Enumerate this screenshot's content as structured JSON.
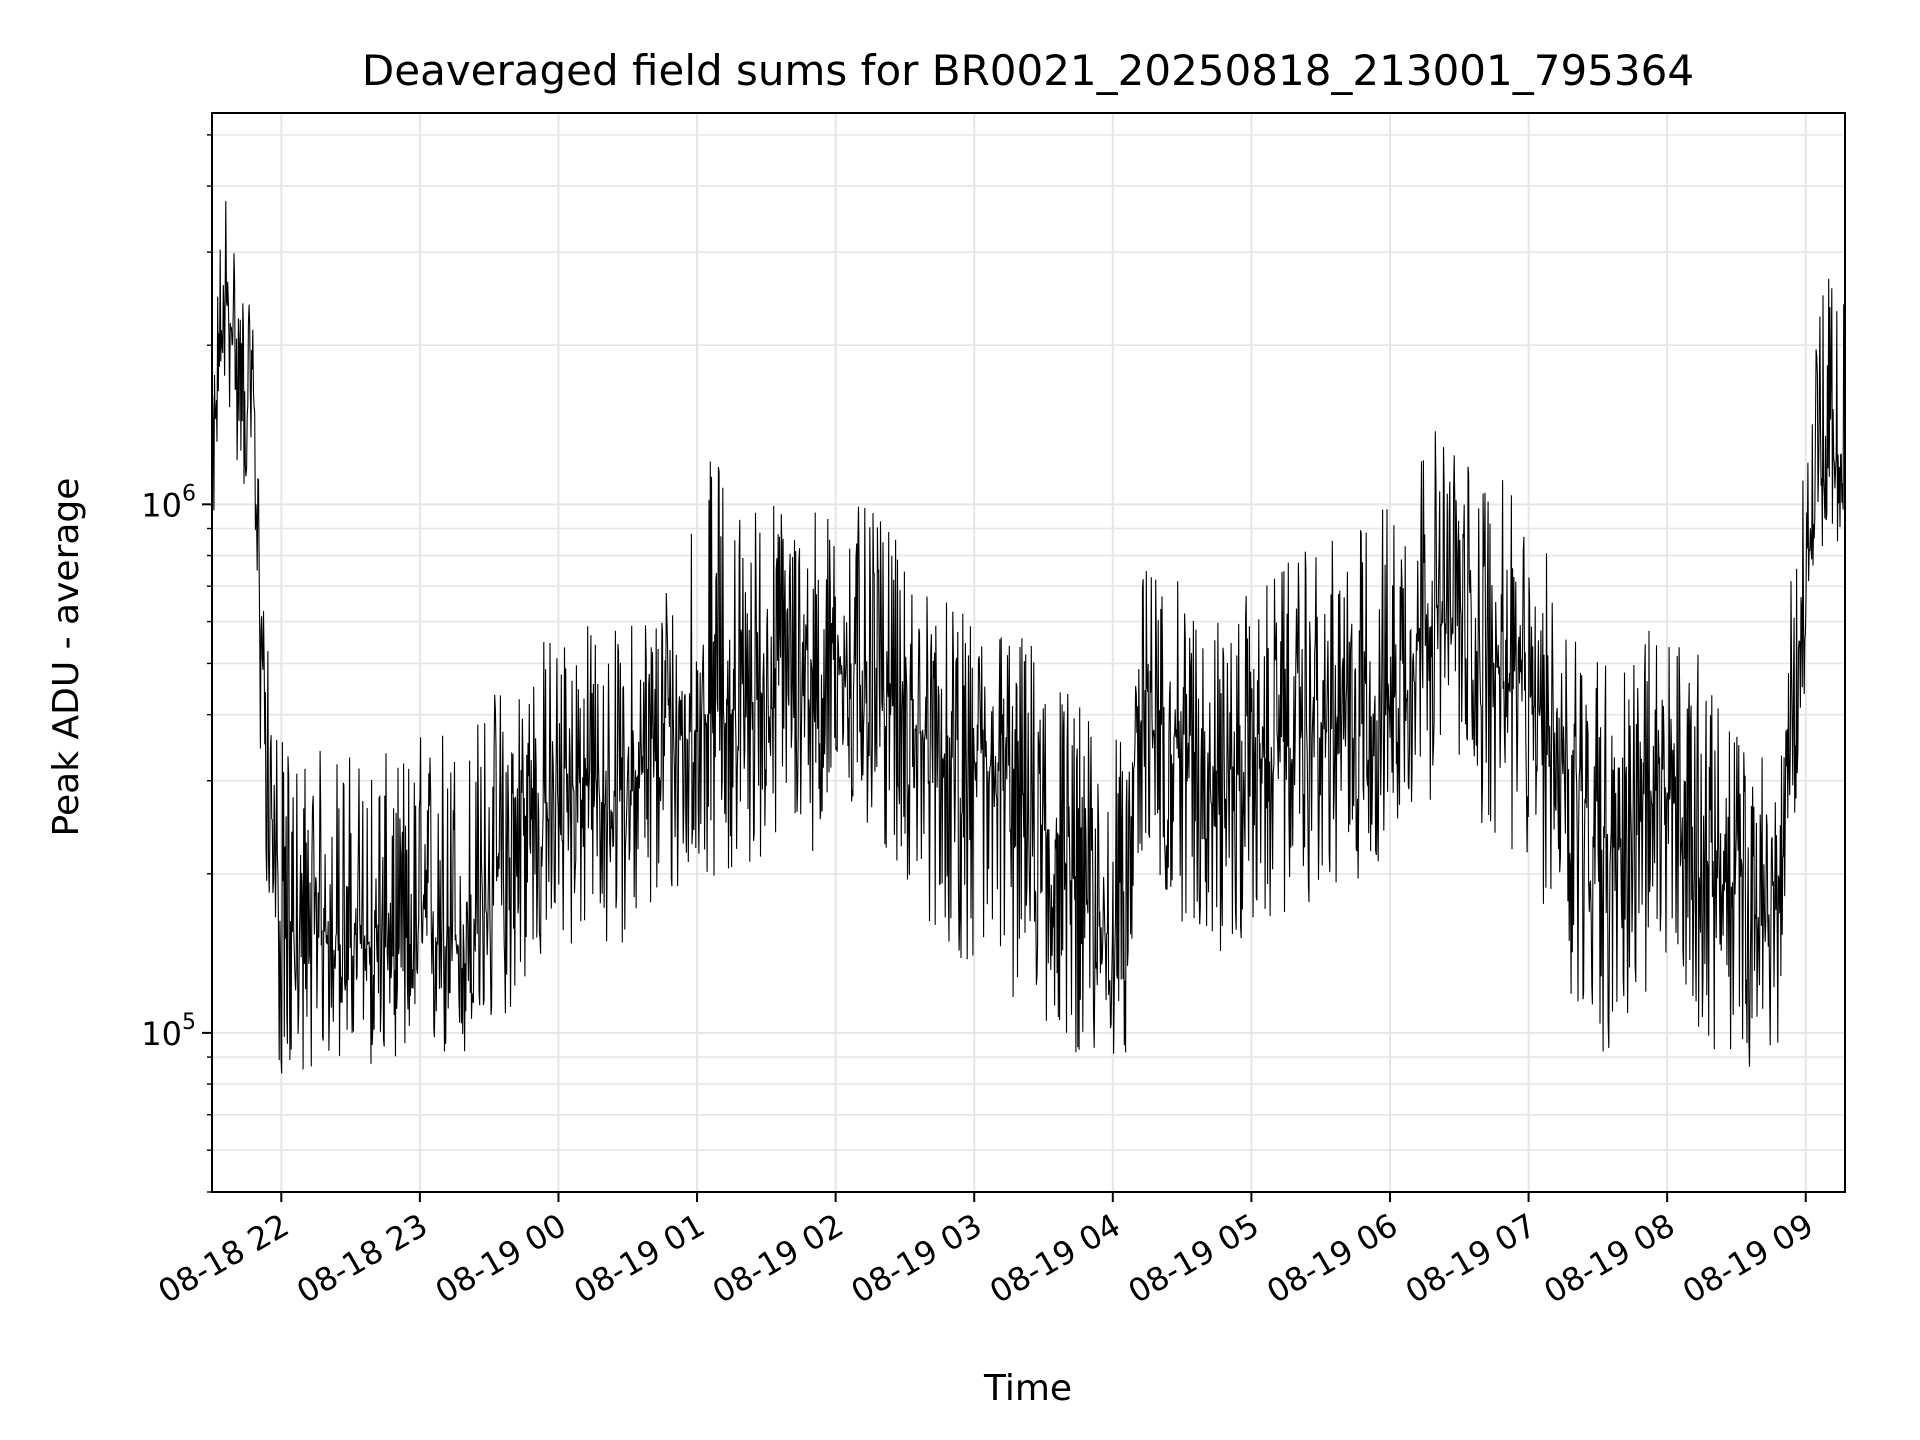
{
  "chart_data": {
    "type": "line",
    "title": "Deaveraged field sums for BR0021_20250818_213001_795364",
    "xlabel": "Time",
    "ylabel": "Peak ADU - average",
    "yscale": "log",
    "ylim": [
      50000,
      5500000
    ],
    "xlim": [
      "2025-08-18 21:30",
      "2025-08-19 09:17"
    ],
    "grid": true,
    "line_color": "#000000",
    "x_ticks": [
      {
        "time": "2025-08-18 22:00",
        "label": "08-18 22"
      },
      {
        "time": "2025-08-18 23:00",
        "label": "08-18 23"
      },
      {
        "time": "2025-08-19 00:00",
        "label": "08-19 00"
      },
      {
        "time": "2025-08-19 01:00",
        "label": "08-19 01"
      },
      {
        "time": "2025-08-19 02:00",
        "label": "08-19 02"
      },
      {
        "time": "2025-08-19 03:00",
        "label": "08-19 03"
      },
      {
        "time": "2025-08-19 04:00",
        "label": "08-19 04"
      },
      {
        "time": "2025-08-19 05:00",
        "label": "08-19 05"
      },
      {
        "time": "2025-08-19 06:00",
        "label": "08-19 06"
      },
      {
        "time": "2025-08-19 07:00",
        "label": "08-19 07"
      },
      {
        "time": "2025-08-19 08:00",
        "label": "08-19 08"
      },
      {
        "time": "2025-08-19 09:00",
        "label": "08-19 09"
      }
    ],
    "y_ticks": [
      {
        "value": 100000,
        "base": "10",
        "exp": "5"
      },
      {
        "value": 1000000,
        "base": "10",
        "exp": "6"
      }
    ],
    "series": [
      {
        "x": [
          "2025-08-18 21:30",
          "2025-08-18 21:33",
          "2025-08-18 21:36",
          "2025-08-18 21:39",
          "2025-08-18 21:42",
          "2025-08-18 21:45",
          "2025-08-18 21:48",
          "2025-08-18 21:51",
          "2025-08-18 21:54",
          "2025-08-18 21:57",
          "2025-08-18 22:00",
          "2025-08-18 22:10",
          "2025-08-18 22:20",
          "2025-08-18 22:30",
          "2025-08-18 22:40",
          "2025-08-18 22:50",
          "2025-08-18 23:00",
          "2025-08-18 23:10",
          "2025-08-18 23:20",
          "2025-08-18 23:30",
          "2025-08-18 23:40",
          "2025-08-18 23:50",
          "2025-08-19 00:00",
          "2025-08-19 00:10",
          "2025-08-19 00:20",
          "2025-08-19 00:30",
          "2025-08-19 00:40",
          "2025-08-19 00:50",
          "2025-08-19 01:00",
          "2025-08-19 01:10",
          "2025-08-19 01:20",
          "2025-08-19 01:30",
          "2025-08-19 01:40",
          "2025-08-19 01:50",
          "2025-08-19 02:00",
          "2025-08-19 02:10",
          "2025-08-19 02:20",
          "2025-08-19 02:30",
          "2025-08-19 02:40",
          "2025-08-19 02:50",
          "2025-08-19 03:00",
          "2025-08-19 03:10",
          "2025-08-19 03:20",
          "2025-08-19 03:30",
          "2025-08-19 03:40",
          "2025-08-19 03:50",
          "2025-08-19 04:00",
          "2025-08-19 04:05",
          "2025-08-19 04:10",
          "2025-08-19 04:20",
          "2025-08-19 04:30",
          "2025-08-19 04:40",
          "2025-08-19 04:50",
          "2025-08-19 05:00",
          "2025-08-19 05:10",
          "2025-08-19 05:20",
          "2025-08-19 05:30",
          "2025-08-19 05:40",
          "2025-08-19 05:50",
          "2025-08-19 06:00",
          "2025-08-19 06:10",
          "2025-08-19 06:20",
          "2025-08-19 06:30",
          "2025-08-19 06:40",
          "2025-08-19 06:50",
          "2025-08-19 07:00",
          "2025-08-19 07:10",
          "2025-08-19 07:20",
          "2025-08-19 07:30",
          "2025-08-19 07:40",
          "2025-08-19 07:50",
          "2025-08-19 08:00",
          "2025-08-19 08:10",
          "2025-08-19 08:20",
          "2025-08-19 08:30",
          "2025-08-19 08:40",
          "2025-08-19 08:45",
          "2025-08-19 08:50",
          "2025-08-19 08:55",
          "2025-08-19 09:00",
          "2025-08-19 09:05",
          "2025-08-19 09:10",
          "2025-08-19 09:17"
        ],
        "y": [
          1000000,
          1900000,
          2400000,
          2100000,
          1800000,
          1700000,
          1600000,
          600000,
          350000,
          220000,
          150000,
          140000,
          160000,
          140000,
          150000,
          140000,
          150000,
          160000,
          140000,
          180000,
          220000,
          260000,
          280000,
          300000,
          270000,
          290000,
          320000,
          350000,
          380000,
          420000,
          400000,
          450000,
          470000,
          460000,
          480000,
          500000,
          450000,
          400000,
          350000,
          320000,
          300000,
          310000,
          280000,
          240000,
          200000,
          170000,
          150000,
          140000,
          380000,
          400000,
          350000,
          330000,
          300000,
          320000,
          340000,
          360000,
          370000,
          380000,
          400000,
          420000,
          550000,
          600000,
          580000,
          520000,
          480000,
          420000,
          380000,
          300000,
          250000,
          220000,
          260000,
          280000,
          250000,
          200000,
          180000,
          160000,
          170000,
          200000,
          450000,
          700000,
          1100000,
          1200000,
          1250000
        ],
        "y_min": [
          800000,
          1400000,
          1700000,
          1300000,
          1100000,
          1000000,
          900000,
          300000,
          180000,
          90000,
          80000,
          85000,
          85000,
          90000,
          85000,
          90000,
          85000,
          85000,
          85000,
          95000,
          110000,
          130000,
          130000,
          150000,
          140000,
          150000,
          160000,
          170000,
          190000,
          200000,
          190000,
          220000,
          230000,
          220000,
          230000,
          240000,
          220000,
          190000,
          160000,
          140000,
          130000,
          120000,
          110000,
          100000,
          95000,
          85000,
          80000,
          85000,
          170000,
          180000,
          160000,
          150000,
          130000,
          150000,
          160000,
          170000,
          180000,
          180000,
          200000,
          210000,
          260000,
          280000,
          270000,
          240000,
          220000,
          190000,
          160000,
          100000,
          90000,
          90000,
          110000,
          120000,
          110000,
          90000,
          88000,
          85000,
          90000,
          100000,
          250000,
          450000,
          800000,
          850000,
          800000
        ],
        "y_max": [
          1500000,
          3200000,
          4300000,
          3500000,
          2700000,
          2500000,
          2200000,
          1000000,
          550000,
          400000,
          360000,
          350000,
          350000,
          350000,
          350000,
          330000,
          380000,
          400000,
          370000,
          450000,
          500000,
          560000,
          600000,
          620000,
          580000,
          600000,
          700000,
          800000,
          1200000,
          1250000,
          1000000,
          1100000,
          1000000,
          1050000,
          950000,
          1000000,
          950000,
          800000,
          700000,
          650000,
          600000,
          630000,
          580000,
          550000,
          480000,
          400000,
          380000,
          350000,
          750000,
          800000,
          700000,
          650000,
          600000,
          700000,
          750000,
          800000,
          850000,
          870000,
          950000,
          1100000,
          1350000,
          1400000,
          1300000,
          1200000,
          1100000,
          900000,
          800000,
          650000,
          550000,
          500000,
          580000,
          600000,
          560000,
          450000,
          380000,
          350000,
          360000,
          400000,
          900000,
          1700000,
          2500000,
          2700000,
          2600000
        ]
      }
    ]
  }
}
